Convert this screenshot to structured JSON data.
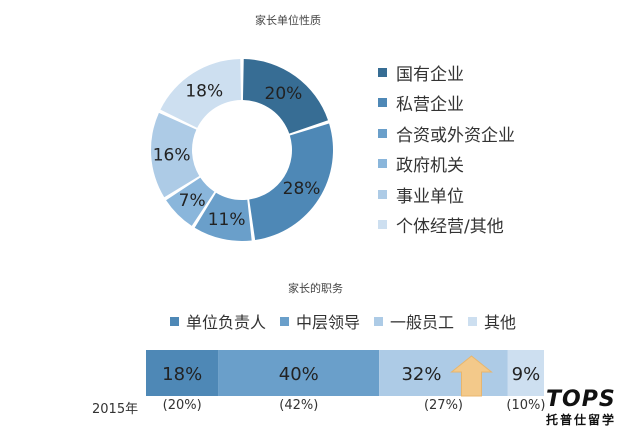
{
  "chart_data": [
    {
      "type": "pie",
      "title": "家长单位性质",
      "categories": [
        "国有企业",
        "私营企业",
        "合资或外资企业",
        "政府机关",
        "事业单位",
        "个体经营/其他"
      ],
      "values": [
        20,
        28,
        11,
        7,
        16,
        18
      ],
      "value_labels": [
        "20%",
        "28%",
        "11%",
        "7%",
        "16%",
        "18%"
      ],
      "colors": [
        "#376d94",
        "#4e88b6",
        "#6a9fca",
        "#8ab6db",
        "#adcbe6",
        "#cddff0"
      ],
      "legend": "right"
    },
    {
      "type": "bar",
      "orientation": "horizontal-stacked",
      "title": "家长的职务",
      "series": [
        {
          "name": "单位负责人",
          "value": 18,
          "label": "18%",
          "prev_label": "(20%)"
        },
        {
          "name": "中层领导",
          "value": 40,
          "label": "40%",
          "prev_label": "(42%)"
        },
        {
          "name": "一般员工",
          "value": 32,
          "label": "32%",
          "prev_label": "(27%)"
        },
        {
          "name": "其他",
          "value": 9,
          "label": "9%",
          "prev_label": "(10%)"
        }
      ],
      "colors": [
        "#4e88b6",
        "#6a9fca",
        "#adcbe6",
        "#cddff0"
      ],
      "prev_year_label": "2015年",
      "annotation": "up-arrow",
      "legend": "top"
    }
  ],
  "logo": {
    "mark": "TOPS",
    "sub": "托普仕留学"
  }
}
